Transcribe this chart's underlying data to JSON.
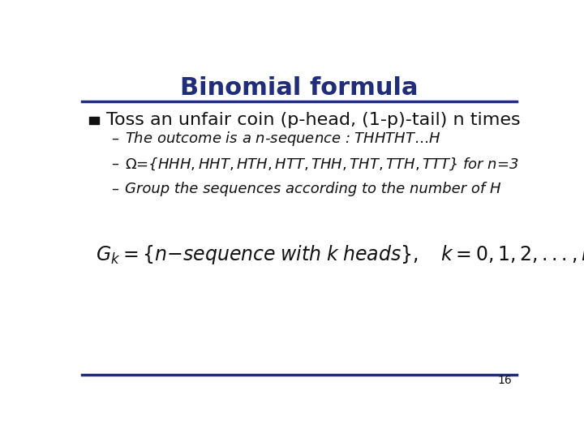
{
  "title": "Binomial formula",
  "title_color": "#1F2D7B",
  "title_fontsize": 22,
  "bg_color": "#FFFFFF",
  "line_color": "#1F2D7B",
  "bullet_text": "Toss an unfair coin (p-head, (1-p)-tail) n times",
  "bullet_fontsize": 16,
  "sub_bullet_fontsize": 13,
  "formula_fontsize": 17,
  "page_number": "16",
  "page_number_fontsize": 10
}
